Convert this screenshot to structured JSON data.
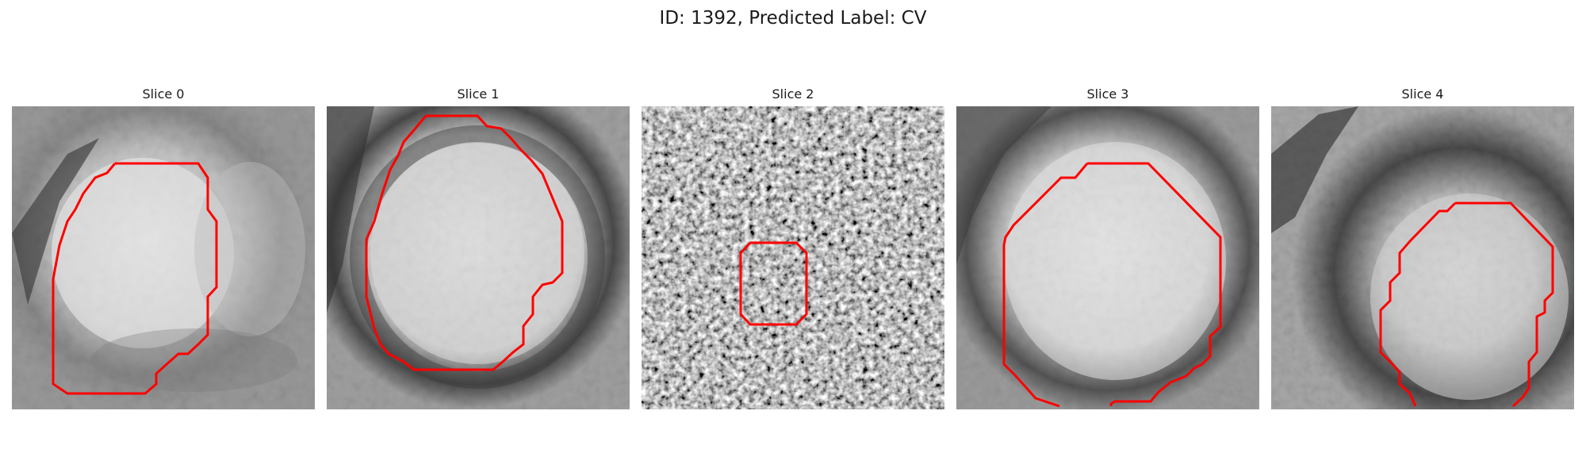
{
  "figure": {
    "title": "ID: 1392, Predicted Label: CV",
    "contour_color": "#ff0000"
  },
  "slices": [
    {
      "title": "Slice 0"
    },
    {
      "title": "Slice 1"
    },
    {
      "title": "Slice 2"
    },
    {
      "title": "Slice 3"
    },
    {
      "title": "Slice 4"
    }
  ]
}
